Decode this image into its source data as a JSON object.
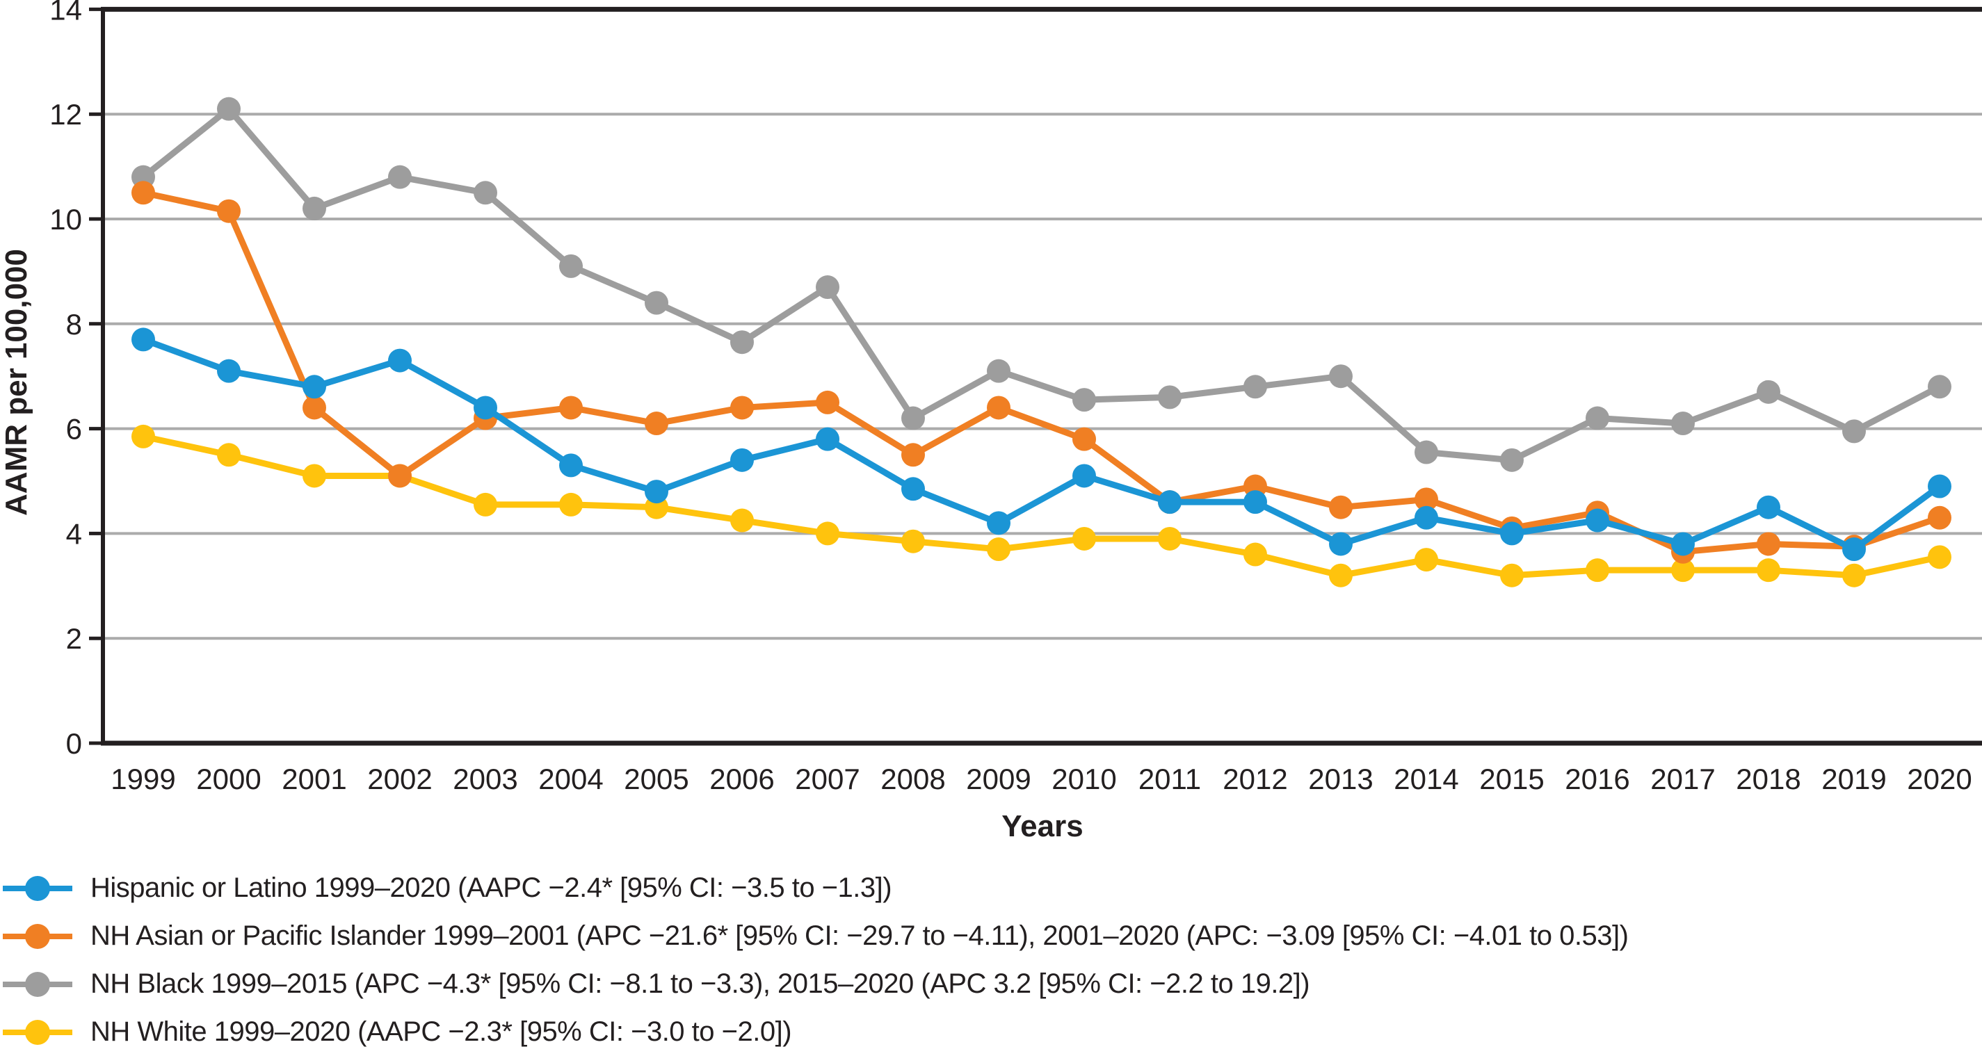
{
  "chart_data": {
    "type": "line",
    "title": "",
    "xlabel": "Years",
    "ylabel": "AAMR per 100,000",
    "x": [
      1999,
      2000,
      2001,
      2002,
      2003,
      2004,
      2005,
      2006,
      2007,
      2008,
      2009,
      2010,
      2011,
      2012,
      2013,
      2014,
      2015,
      2016,
      2017,
      2018,
      2019,
      2020
    ],
    "ylim": [
      0,
      14
    ],
    "yticks": [
      0,
      2,
      4,
      6,
      8,
      10,
      12,
      14
    ],
    "grid": "horizontal",
    "legend_position": "below-left",
    "colors": {
      "axis": "#231f20",
      "grid": "#ababab",
      "background": "#ffffff"
    },
    "series": [
      {
        "name": "Hispanic or Latino",
        "color": "#1b95d5",
        "legend": "Hispanic or Latino 1999–2020 (AAPC −2.4* [95% CI: −3.5 to −1.3])",
        "values": [
          7.7,
          7.1,
          6.8,
          7.3,
          6.4,
          5.3,
          4.8,
          5.4,
          5.8,
          4.85,
          4.2,
          5.1,
          4.6,
          4.6,
          3.8,
          4.3,
          4.0,
          4.25,
          3.8,
          4.5,
          3.7,
          4.9
        ]
      },
      {
        "name": "NH Asian or Pacific Islander",
        "color": "#f07f23",
        "legend": "NH Asian or Pacific Islander 1999–2001 (APC −21.6* [95% CI: −29.7 to −4.11), 2001–2020 (APC: −3.09 [95% CI: −4.01 to 0.53])",
        "values": [
          10.5,
          10.15,
          6.4,
          5.1,
          6.2,
          6.4,
          6.1,
          6.4,
          6.5,
          5.5,
          6.4,
          5.8,
          4.6,
          4.9,
          4.5,
          4.65,
          4.1,
          4.4,
          3.65,
          3.8,
          3.75,
          4.3
        ]
      },
      {
        "name": "NH Black",
        "color": "#9d9d9d",
        "legend": "NH Black 1999–2015 (APC −4.3* [95% CI: −8.1 to −3.3), 2015–2020 (APC 3.2 [95% CI: −2.2 to 19.2])",
        "values": [
          10.8,
          12.1,
          10.2,
          10.8,
          10.5,
          9.1,
          8.4,
          7.65,
          8.7,
          6.2,
          7.1,
          6.55,
          6.6,
          6.8,
          7.0,
          5.55,
          5.4,
          6.2,
          6.1,
          6.7,
          5.95,
          6.8
        ]
      },
      {
        "name": "NH White",
        "color": "#ffc30d",
        "legend": "NH White 1999–2020 (AAPC −2.3* [95% CI: −3.0 to −2.0])",
        "values": [
          5.85,
          5.5,
          5.1,
          5.1,
          4.55,
          4.55,
          4.5,
          4.25,
          4.0,
          3.85,
          3.7,
          3.9,
          3.9,
          3.6,
          3.2,
          3.5,
          3.2,
          3.3,
          3.3,
          3.3,
          3.2,
          3.55
        ]
      }
    ],
    "draw_order": [
      "NH White",
      "NH Black",
      "NH Asian or Pacific Islander",
      "Hispanic or Latino"
    ]
  }
}
